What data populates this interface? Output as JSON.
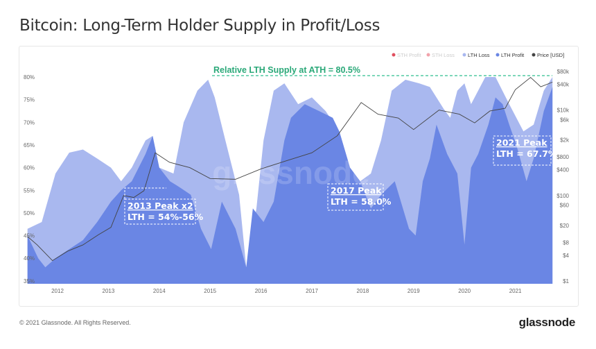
{
  "title": "Bitcoin: Long-Term Holder Supply in Profit/Loss",
  "footer": "© 2021 Glassnode. All Rights Reserved.",
  "logo": "glassnode",
  "watermark": "glassnode",
  "colors": {
    "lth_loss": "#a9b8ef",
    "lth_profit": "#6a86e4",
    "price": "#444444",
    "sth_profit": "#e04f5f",
    "sth_loss": "#f1a3ab",
    "ath_line": "#2fbf8f"
  },
  "chart_data": {
    "type": "area",
    "title": "Bitcoin: Long-Term Holder Supply in Profit/Loss",
    "legend": [
      "STH Profit",
      "STH Loss",
      "LTH Loss",
      "LTH Profit",
      "Price [USD]"
    ],
    "legend_placement": "top-right",
    "xlim": [
      2011.41,
      2021.73
    ],
    "ylim": [
      35,
      82
    ],
    "x_ticks": [
      "2012",
      "2013",
      "2014",
      "2015",
      "2016",
      "2017",
      "2018",
      "2019",
      "2020",
      "2021"
    ],
    "y_ticks": [
      "35%",
      "40%",
      "45%",
      "50%",
      "55%",
      "60%",
      "65%",
      "70%",
      "75%",
      "80%"
    ],
    "y2_ticks": [
      "$1",
      "$4",
      "$8",
      "$20",
      "$60",
      "$100",
      "$400",
      "$800",
      "$2k",
      "$6k",
      "$10k",
      "$40k",
      "$80k"
    ],
    "y2_values": [
      1,
      4,
      8,
      20,
      60,
      100,
      400,
      800,
      2000,
      6000,
      10000,
      40000,
      80000
    ],
    "y2_scale": "log",
    "lth_total_pct": [
      [
        2011.41,
        46.5
      ],
      [
        2011.69,
        48
      ],
      [
        2011.96,
        58.7
      ],
      [
        2012.23,
        63.3
      ],
      [
        2012.5,
        64
      ],
      [
        2012.78,
        62
      ],
      [
        2013.05,
        60
      ],
      [
        2013.25,
        57
      ],
      [
        2013.46,
        60
      ],
      [
        2013.73,
        66
      ],
      [
        2013.87,
        67
      ],
      [
        2014.0,
        60
      ],
      [
        2014.28,
        58.7
      ],
      [
        2014.48,
        70
      ],
      [
        2014.75,
        77
      ],
      [
        2014.96,
        79.4
      ],
      [
        2015.09,
        75.5
      ],
      [
        2015.3,
        66
      ],
      [
        2015.57,
        54
      ],
      [
        2015.71,
        38
      ],
      [
        2015.91,
        51
      ],
      [
        2016.05,
        66
      ],
      [
        2016.25,
        77
      ],
      [
        2016.46,
        78.6
      ],
      [
        2016.73,
        74
      ],
      [
        2017.0,
        75.5
      ],
      [
        2017.27,
        72.5
      ],
      [
        2017.54,
        68
      ],
      [
        2017.75,
        60
      ],
      [
        2017.95,
        57
      ],
      [
        2018.16,
        58.7
      ],
      [
        2018.36,
        66
      ],
      [
        2018.57,
        77
      ],
      [
        2018.84,
        79.4
      ],
      [
        2019.11,
        78.6
      ],
      [
        2019.32,
        77.8
      ],
      [
        2019.59,
        73
      ],
      [
        2019.72,
        71
      ],
      [
        2019.86,
        77
      ],
      [
        2020.0,
        78.6
      ],
      [
        2020.13,
        74
      ],
      [
        2020.41,
        80
      ],
      [
        2020.61,
        80
      ],
      [
        2020.88,
        74
      ],
      [
        2021.16,
        68
      ],
      [
        2021.36,
        69.5
      ],
      [
        2021.56,
        77
      ],
      [
        2021.73,
        80
      ]
    ],
    "lth_profit_pct": [
      [
        2011.41,
        45
      ],
      [
        2011.62,
        40
      ],
      [
        2011.76,
        38
      ],
      [
        2011.96,
        40
      ],
      [
        2012.23,
        42
      ],
      [
        2012.5,
        44
      ],
      [
        2012.78,
        48
      ],
      [
        2013.05,
        52.5
      ],
      [
        2013.25,
        55
      ],
      [
        2013.46,
        57
      ],
      [
        2013.73,
        63
      ],
      [
        2013.87,
        67
      ],
      [
        2014.0,
        60
      ],
      [
        2014.21,
        57
      ],
      [
        2014.41,
        55.6
      ],
      [
        2014.62,
        54
      ],
      [
        2014.82,
        46.5
      ],
      [
        2015.02,
        42
      ],
      [
        2015.23,
        52.5
      ],
      [
        2015.5,
        46.5
      ],
      [
        2015.71,
        38
      ],
      [
        2015.84,
        51
      ],
      [
        2016.05,
        48
      ],
      [
        2016.25,
        52.5
      ],
      [
        2016.46,
        66
      ],
      [
        2016.59,
        71
      ],
      [
        2016.86,
        74
      ],
      [
        2017.14,
        72.5
      ],
      [
        2017.41,
        71
      ],
      [
        2017.54,
        68
      ],
      [
        2017.75,
        60
      ],
      [
        2017.95,
        57
      ],
      [
        2018.16,
        51
      ],
      [
        2018.36,
        54
      ],
      [
        2018.63,
        57
      ],
      [
        2018.91,
        46.5
      ],
      [
        2019.04,
        45
      ],
      [
        2019.18,
        57
      ],
      [
        2019.32,
        62
      ],
      [
        2019.45,
        69.5
      ],
      [
        2019.66,
        63
      ],
      [
        2019.86,
        58.7
      ],
      [
        2020.0,
        43
      ],
      [
        2020.13,
        60
      ],
      [
        2020.27,
        63
      ],
      [
        2020.47,
        69.5
      ],
      [
        2020.61,
        75.5
      ],
      [
        2020.75,
        74
      ],
      [
        2020.88,
        69.5
      ],
      [
        2021.02,
        65
      ],
      [
        2021.22,
        57
      ],
      [
        2021.36,
        62
      ],
      [
        2021.56,
        72.5
      ],
      [
        2021.73,
        77.8
      ]
    ],
    "price_usd": [
      [
        2011.41,
        11
      ],
      [
        2011.6,
        7
      ],
      [
        2011.9,
        3
      ],
      [
        2012.2,
        5
      ],
      [
        2012.5,
        7
      ],
      [
        2012.8,
        12
      ],
      [
        2013.05,
        18
      ],
      [
        2013.3,
        100
      ],
      [
        2013.5,
        90
      ],
      [
        2013.7,
        130
      ],
      [
        2013.92,
        1000
      ],
      [
        2014.2,
        600
      ],
      [
        2014.6,
        450
      ],
      [
        2015.0,
        250
      ],
      [
        2015.5,
        240
      ],
      [
        2016.0,
        420
      ],
      [
        2016.5,
        650
      ],
      [
        2017.0,
        1000
      ],
      [
        2017.5,
        2500
      ],
      [
        2017.97,
        15000
      ],
      [
        2018.3,
        8000
      ],
      [
        2018.7,
        6500
      ],
      [
        2019.0,
        3500
      ],
      [
        2019.5,
        10000
      ],
      [
        2019.9,
        8000
      ],
      [
        2020.2,
        5000
      ],
      [
        2020.5,
        9500
      ],
      [
        2020.8,
        11000
      ],
      [
        2021.0,
        30000
      ],
      [
        2021.3,
        58000
      ],
      [
        2021.5,
        35000
      ],
      [
        2021.73,
        45000
      ]
    ]
  },
  "annotations": {
    "ath": "Relative LTH Supply at ATH = 80.5%",
    "peak2013_title": "2013 Peak x2",
    "peak2013_value": "LTH = 54%-56%",
    "peak2017_title": "2017 Peak",
    "peak2017_value": "LTH = 58.0%",
    "peak2021_title": "2021 Peak",
    "peak2021_value": "LTH = 67.7%"
  }
}
